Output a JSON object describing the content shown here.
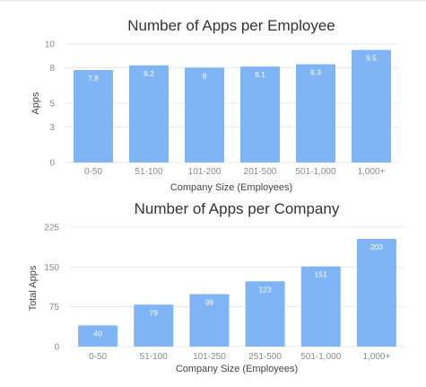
{
  "chart_data": [
    {
      "type": "bar",
      "title": "Number of Apps per Employee",
      "xlabel": "Company Size (Employees)",
      "ylabel": "Apps",
      "categories": [
        "0-50",
        "51-100",
        "101-200",
        "201-500",
        "501-1,000",
        "1,000+"
      ],
      "values": [
        7.8,
        8.2,
        8,
        8.1,
        8.3,
        9.5
      ],
      "data_labels": [
        "7.8",
        "8.2",
        "8",
        "8.1",
        "8.3",
        "9.5"
      ],
      "ylim": [
        0,
        10
      ],
      "yticks": [
        0,
        3,
        5,
        8,
        10
      ],
      "grid": true,
      "bar_color": "#7fb4f5"
    },
    {
      "type": "bar",
      "title": "Number of Apps per Company",
      "xlabel": "Company Size (Employees)",
      "ylabel": "Total Apps",
      "categories": [
        "0-50",
        "51-100",
        "101-250",
        "251-500",
        "501-1,000",
        "1,000+"
      ],
      "values": [
        40,
        79,
        99,
        123,
        151,
        203
      ],
      "data_labels": [
        "40",
        "79",
        "99",
        "123",
        "151",
        "203"
      ],
      "ylim": [
        0,
        225
      ],
      "yticks": [
        0,
        75,
        150,
        225
      ],
      "grid": true,
      "bar_color": "#7fb4f5"
    }
  ]
}
